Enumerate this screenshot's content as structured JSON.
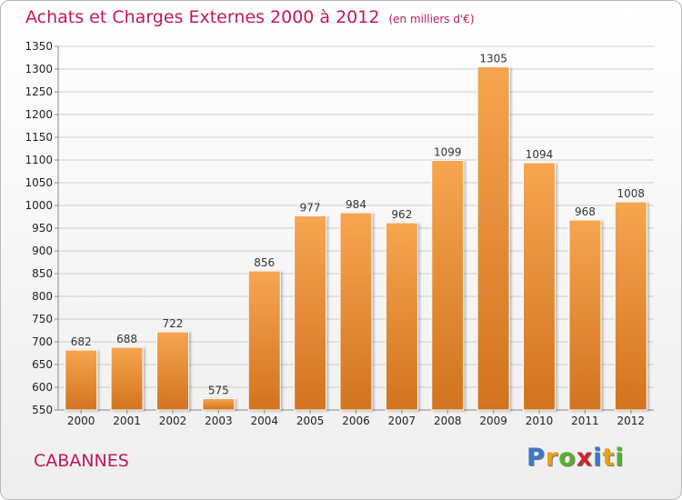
{
  "header": {
    "title": "Achats et Charges Externes 2000 à 2012",
    "subtitle": "(en milliers d'€)"
  },
  "footer": {
    "town": "CABANNES",
    "logo_letters": [
      "P",
      "r",
      "o",
      "x",
      "i",
      "t",
      "i"
    ],
    "logo_colors": [
      "#3a78c8",
      "#e8a020",
      "#58b030",
      "#c8282c",
      "#3a78c8",
      "#e8a020",
      "#58b030"
    ]
  },
  "colors": {
    "bar_top": "#f7a550",
    "bar_bottom": "#d2731f",
    "grid": "#cccccc",
    "title": "#c0185a"
  },
  "chart_data": {
    "type": "bar",
    "title": "Achats et Charges Externes 2000 à 2012",
    "subtitle": "(en milliers d'€)",
    "categories": [
      "2000",
      "2001",
      "2002",
      "2003",
      "2004",
      "2005",
      "2006",
      "2007",
      "2008",
      "2009",
      "2010",
      "2011",
      "2012"
    ],
    "values": [
      682,
      688,
      722,
      575,
      856,
      977,
      984,
      962,
      1099,
      1305,
      1094,
      968,
      1008
    ],
    "ylim": [
      550,
      1350
    ],
    "yticks": [
      550,
      600,
      650,
      700,
      750,
      800,
      850,
      900,
      950,
      1000,
      1050,
      1100,
      1150,
      1200,
      1250,
      1300,
      1350
    ],
    "grid": true,
    "data_labels": true,
    "xlabel": "",
    "ylabel": ""
  }
}
